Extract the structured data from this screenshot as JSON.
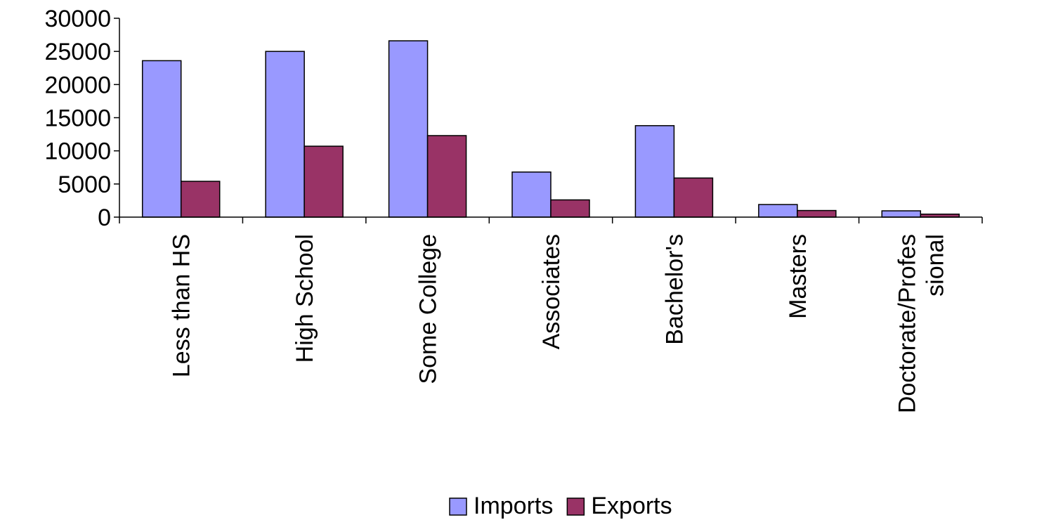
{
  "chart_data": {
    "type": "bar",
    "categories": [
      "Less than HS",
      "High School",
      "Some College",
      "Associates",
      "Bachelor's",
      "Masters",
      "Doctorate/Professional"
    ],
    "category_label_lines": [
      [
        "Less than HS"
      ],
      [
        "High School"
      ],
      [
        "Some College"
      ],
      [
        "Associates"
      ],
      [
        "Bachelor's"
      ],
      [
        "Masters"
      ],
      [
        "Doctorate/Profes",
        "sional"
      ]
    ],
    "series": [
      {
        "name": "Imports",
        "color": "#9999ff",
        "values": [
          23600,
          25000,
          26600,
          6800,
          13800,
          1900,
          950
        ]
      },
      {
        "name": "Exports",
        "color": "#993366",
        "values": [
          5400,
          10700,
          12300,
          2600,
          5900,
          1000,
          450
        ]
      }
    ],
    "ylim": [
      0,
      30000
    ],
    "yticks": [
      "0",
      "5000",
      "10000",
      "15000",
      "20000",
      "25000",
      "30000"
    ],
    "legend_position": "bottom",
    "grid": false
  }
}
